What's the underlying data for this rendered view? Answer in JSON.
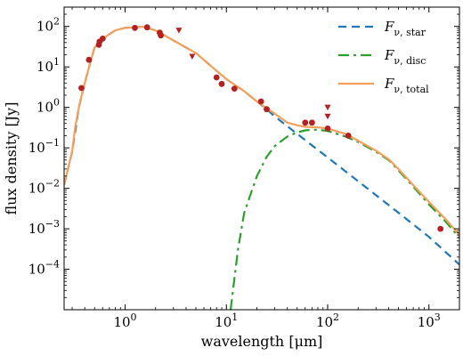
{
  "chart_data": {
    "type": "line",
    "xlabel": "wavelength [μm]",
    "ylabel": "flux density [Jy]",
    "x_scale": "log",
    "y_scale": "log",
    "xlim": [
      0.25,
      2000
    ],
    "ylim": [
      1e-05,
      300
    ],
    "grid": false,
    "legend_position": "top-right",
    "x_ticks": [
      {
        "value": 1,
        "label": "10^0"
      },
      {
        "value": 10,
        "label": "10^1"
      },
      {
        "value": 100,
        "label": "10^2"
      },
      {
        "value": 1000,
        "label": "10^3"
      }
    ],
    "y_ticks": [
      {
        "value": 0.0001,
        "label": "10^-4"
      },
      {
        "value": 0.001,
        "label": "10^-3"
      },
      {
        "value": 0.01,
        "label": "10^-2"
      },
      {
        "value": 0.1,
        "label": "10^-1"
      },
      {
        "value": 1,
        "label": "10^0"
      },
      {
        "value": 10,
        "label": "10^1"
      },
      {
        "value": 100,
        "label": "10^2"
      }
    ],
    "series": [
      {
        "name": "F_ν,star",
        "legend_main": "F",
        "legend_sub": "ν, star",
        "color": "#1f77b4",
        "style": "dashed",
        "x": [
          0.25,
          0.3,
          0.35,
          0.4,
          0.45,
          0.5,
          0.6,
          0.8,
          1.0,
          1.5,
          2,
          3,
          5,
          8,
          10,
          15,
          20,
          25,
          30,
          50,
          100,
          200,
          500,
          1000,
          2000
        ],
        "y": [
          0.012,
          0.08,
          1.0,
          4,
          12,
          30,
          50,
          80,
          92,
          98,
          80,
          45,
          22,
          8,
          5,
          2.5,
          1.4,
          0.9,
          0.6,
          0.22,
          0.058,
          0.015,
          0.0025,
          0.00063,
          0.00013
        ]
      },
      {
        "name": "F_ν,disc",
        "legend_main": "F",
        "legend_sub": "ν, disc",
        "color": "#2ca02c",
        "style": "dashdot",
        "x": [
          11,
          13,
          15,
          20,
          25,
          30,
          40,
          50,
          60,
          70,
          80,
          100,
          150,
          200,
          300,
          400,
          500,
          700,
          1000,
          1500,
          2000
        ],
        "y": [
          1e-05,
          0.0003,
          0.0025,
          0.02,
          0.06,
          0.11,
          0.19,
          0.24,
          0.27,
          0.28,
          0.28,
          0.26,
          0.19,
          0.14,
          0.08,
          0.05,
          0.028,
          0.011,
          0.004,
          0.0014,
          0.0006
        ]
      },
      {
        "name": "F_ν,total",
        "legend_main": "F",
        "legend_sub": "ν, total",
        "color": "#f5a05a",
        "style": "solid",
        "x": [
          0.25,
          0.28,
          0.3,
          0.32,
          0.35,
          0.38,
          0.4,
          0.45,
          0.5,
          0.6,
          0.8,
          1.0,
          1.5,
          2,
          3,
          5,
          8,
          10,
          15,
          20,
          25,
          30,
          40,
          50,
          60,
          80,
          100,
          150,
          200,
          300,
          400,
          500,
          700,
          1000,
          1500,
          2000
        ],
        "y": [
          0.012,
          0.04,
          0.08,
          0.3,
          1.0,
          2.5,
          4,
          12,
          30,
          50,
          80,
          92,
          98,
          80,
          45,
          22,
          8,
          5,
          2.5,
          1.4,
          0.95,
          0.7,
          0.42,
          0.36,
          0.33,
          0.32,
          0.3,
          0.22,
          0.15,
          0.085,
          0.052,
          0.03,
          0.012,
          0.0046,
          0.0016,
          0.0007
        ]
      }
    ],
    "observations": {
      "color": "#b22222",
      "points": [
        {
          "x": 0.37,
          "y": 3.0
        },
        {
          "x": 0.44,
          "y": 15
        },
        {
          "x": 0.55,
          "y": 35
        },
        {
          "x": 0.56,
          "y": 42
        },
        {
          "x": 0.6,
          "y": 50
        },
        {
          "x": 1.25,
          "y": 92
        },
        {
          "x": 1.65,
          "y": 95
        },
        {
          "x": 2.2,
          "y": 70
        },
        {
          "x": 2.25,
          "y": 60
        },
        {
          "x": 8,
          "y": 5.5
        },
        {
          "x": 9,
          "y": 3.8
        },
        {
          "x": 12,
          "y": 2.9
        },
        {
          "x": 22,
          "y": 1.4
        },
        {
          "x": 25,
          "y": 0.9
        },
        {
          "x": 60,
          "y": 0.42
        },
        {
          "x": 70,
          "y": 0.42
        },
        {
          "x": 100,
          "y": 0.3
        },
        {
          "x": 160,
          "y": 0.2
        },
        {
          "x": 1300,
          "y": 0.001
        }
      ],
      "upper_limits": [
        {
          "x": 3.4,
          "y": 80
        },
        {
          "x": 4.6,
          "y": 18
        },
        {
          "x": 100,
          "y": 1.0
        },
        {
          "x": 100,
          "y": 0.6
        }
      ]
    }
  }
}
